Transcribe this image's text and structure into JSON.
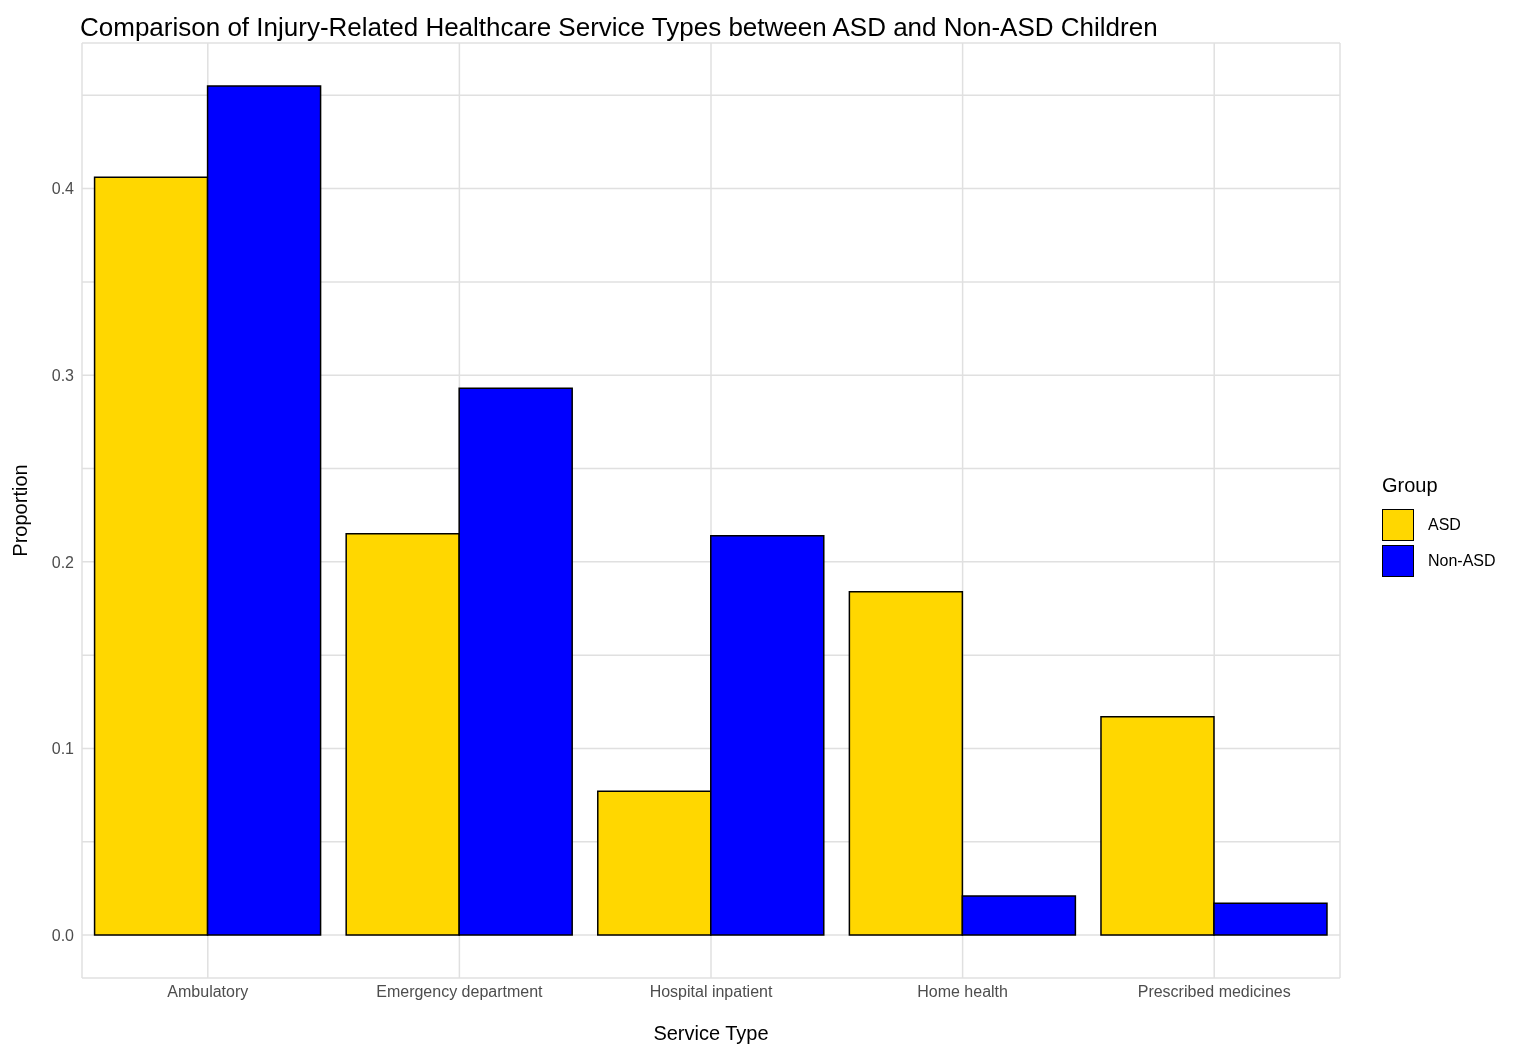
{
  "chart_data": {
    "type": "bar",
    "title": "Comparison of Injury-Related Healthcare Service Types between ASD and Non-ASD Children",
    "xlabel": "Service Type",
    "ylabel": "Proportion",
    "legend_title": "Group",
    "categories": [
      "Ambulatory",
      "Emergency department",
      "Hospital inpatient",
      "Home health",
      "Prescribed medicines"
    ],
    "series": [
      {
        "name": "ASD",
        "color": "#ffd700",
        "values": [
          0.406,
          0.215,
          0.077,
          0.184,
          0.117
        ]
      },
      {
        "name": "Non-ASD",
        "color": "#0000ff",
        "values": [
          0.455,
          0.293,
          0.214,
          0.021,
          0.017
        ]
      }
    ],
    "ylim": [
      -0.023,
      0.478
    ],
    "yticks": [
      {
        "value": 0,
        "label": "0.0"
      },
      {
        "value": 0.05,
        "label": null
      },
      0.1,
      {
        "value": 0.15,
        "label": null
      },
      0.2,
      {
        "value": 0.25,
        "label": null
      },
      0.3,
      {
        "value": 0.35,
        "label": null
      },
      0.4,
      {
        "value": 0.45,
        "label": null
      }
    ],
    "grid": true,
    "legend": "right"
  }
}
